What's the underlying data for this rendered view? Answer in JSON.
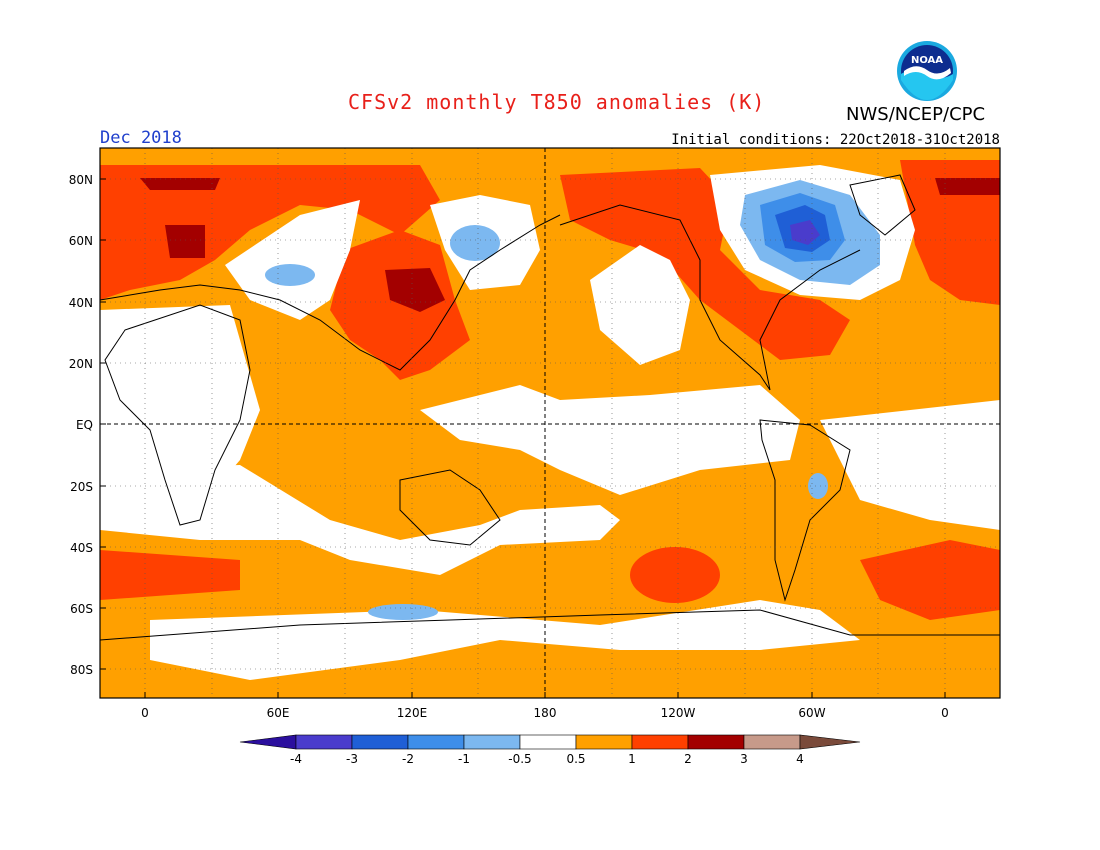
{
  "title": "CFSv2 monthly T850 anomalies (K)",
  "agency": "NWS/NCEP/CPC",
  "logo_text": "NOAA",
  "period": "Dec 2018",
  "initial_conditions": "Initial conditions: 22Oct2018-31Oct2018",
  "colors": {
    "title": "#e8201a",
    "period": "#1f3fcc"
  },
  "lat_labels": [
    "80N",
    "60N",
    "40N",
    "20N",
    "EQ",
    "20S",
    "40S",
    "60S",
    "80S"
  ],
  "lon_labels": [
    "0",
    "60E",
    "120E",
    "180",
    "120W",
    "60W",
    "0"
  ],
  "legend": {
    "labels": [
      "-4",
      "-3",
      "-2",
      "-1",
      "-0.5",
      "0.5",
      "1",
      "2",
      "3",
      "4"
    ],
    "colors": [
      "#2b0f9e",
      "#4a3ccc",
      "#1f5fd6",
      "#3e8ee9",
      "#7cb8f0",
      "#ffffff",
      "#ffa000",
      "#ff4000",
      "#a30000",
      "#c79a8a",
      "#7a4a3a"
    ]
  }
}
